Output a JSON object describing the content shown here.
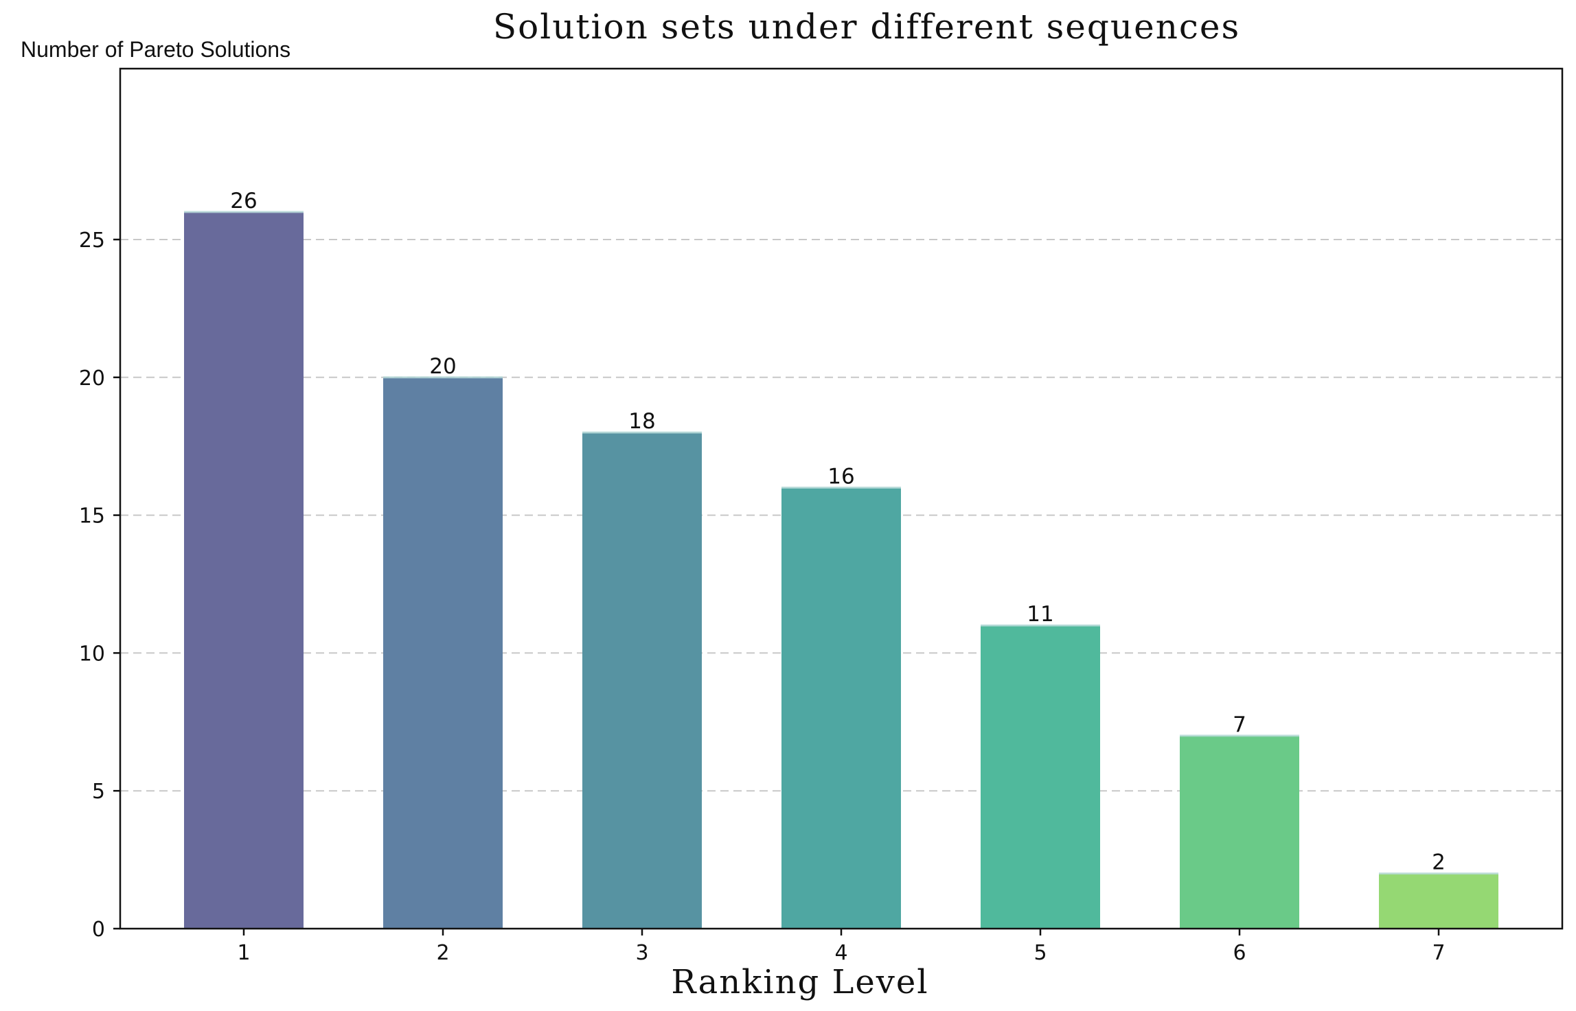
{
  "chart_data": {
    "type": "bar",
    "title": "Solution sets under different sequences",
    "xlabel": "Ranking Level",
    "ylabel": "Number of Pareto Solutions",
    "categories": [
      "1",
      "2",
      "3",
      "4",
      "5",
      "6",
      "7"
    ],
    "values": [
      26,
      20,
      18,
      16,
      11,
      7,
      2
    ],
    "ylim": [
      0,
      31.2
    ],
    "yticks": [
      0,
      5,
      10,
      15,
      20,
      25
    ],
    "grid": "horizontal dashed",
    "colors": [
      "#686a9b",
      "#5f80a3",
      "#5793a2",
      "#4fa7a2",
      "#50b99c",
      "#6aca88",
      "#95d873"
    ]
  }
}
